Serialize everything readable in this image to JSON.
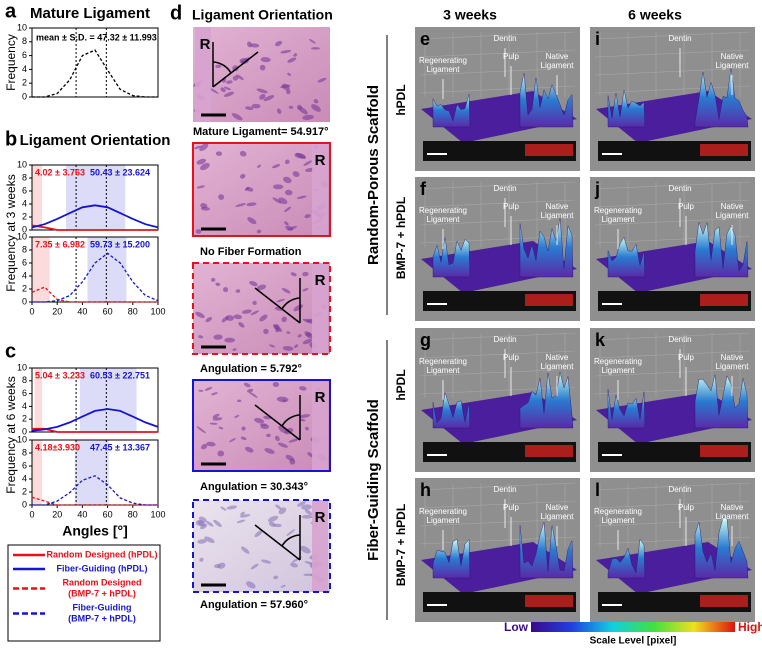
{
  "chart_data": [
    {
      "type": "line",
      "panel_letter": "a",
      "title": "Mature Ligament",
      "ylabel": "Frequency",
      "annotation": "mean ± S.D. = 47.32 ± 11.993",
      "x": [
        0,
        10,
        20,
        30,
        40,
        50,
        60,
        70,
        80,
        90,
        100
      ],
      "xlim": [
        0,
        100
      ],
      "ylim": [
        0,
        10
      ],
      "yticks": [
        0,
        2,
        4,
        6,
        8,
        10
      ],
      "vlines": [
        35,
        59
      ],
      "series": [
        {
          "color": "#000000",
          "dash": true,
          "values": [
            0,
            0,
            0.5,
            2.5,
            6.0,
            6.8,
            3.9,
            1.1,
            0.2,
            0,
            0
          ]
        }
      ]
    },
    {
      "type": "line",
      "panel_letter": "b",
      "title": "Ligament Orientation",
      "ylabel": "Frequency at 3 weeks",
      "x": [
        0,
        10,
        20,
        30,
        40,
        50,
        60,
        70,
        80,
        90,
        100
      ],
      "xlim": [
        0,
        100
      ],
      "ylim": [
        0,
        10
      ],
      "yticks": [
        0,
        2,
        4,
        6,
        8,
        10
      ],
      "vlines": [
        35,
        59
      ],
      "series": [
        {
          "color": "#e8101a",
          "dash": false,
          "annotation": "4.02 ± 3.763",
          "band": [
            0,
            8
          ],
          "values": [
            0.7,
            0.4,
            0,
            0,
            0,
            0,
            0,
            0,
            0,
            0,
            0
          ]
        },
        {
          "color": "#1515d0",
          "dash": false,
          "annotation": "50.43 ± 23.624",
          "band": [
            27,
            74
          ],
          "values": [
            0.4,
            0.9,
            1.7,
            2.6,
            3.5,
            3.8,
            3.5,
            2.6,
            1.7,
            0.9,
            0.4
          ]
        }
      ]
    },
    {
      "type": "line",
      "x": [
        0,
        10,
        20,
        30,
        40,
        50,
        60,
        70,
        80,
        90,
        100
      ],
      "xlim": [
        0,
        100
      ],
      "ylim": [
        0,
        10
      ],
      "yticks": [
        0,
        2,
        4,
        6,
        8,
        10
      ],
      "xticks": [
        0,
        20,
        40,
        60,
        80,
        100
      ],
      "vlines": [
        35,
        59
      ],
      "series": [
        {
          "color": "#e8101a",
          "dash": true,
          "annotation": "7.35 ± 6.982",
          "band": [
            0,
            14
          ],
          "values": [
            1.5,
            2.3,
            0.4,
            0,
            0,
            0,
            0,
            0,
            0,
            0,
            0
          ]
        },
        {
          "color": "#1515d0",
          "dash": true,
          "annotation": "59.73 ± 15.200",
          "band": [
            44,
            75
          ],
          "values": [
            0,
            0,
            0.2,
            1.0,
            3.1,
            6.0,
            7.5,
            6.0,
            3.1,
            1.0,
            0.2
          ]
        }
      ]
    },
    {
      "type": "line",
      "panel_letter": "c",
      "ylabel": "Frequency at 6 weeks",
      "x": [
        0,
        10,
        20,
        30,
        40,
        50,
        60,
        70,
        80,
        90,
        100
      ],
      "xlim": [
        0,
        100
      ],
      "ylim": [
        0,
        10
      ],
      "yticks": [
        0,
        2,
        4,
        6,
        8,
        10
      ],
      "vlines": [
        35,
        59
      ],
      "series": [
        {
          "color": "#e8101a",
          "dash": false,
          "annotation": "5.04 ± 3.233",
          "band": [
            2,
            8
          ],
          "values": [
            0.5,
            0.5,
            0,
            0,
            0,
            0,
            0,
            0,
            0,
            0,
            0
          ]
        },
        {
          "color": "#1515d0",
          "dash": false,
          "annotation": "60.53 ± 22.751",
          "band": [
            38,
            83
          ],
          "values": [
            0.2,
            0.4,
            0.8,
            1.5,
            2.4,
            3.3,
            3.6,
            3.3,
            2.4,
            1.5,
            0.8
          ]
        }
      ]
    },
    {
      "type": "line",
      "xlabel": "Angles [°]",
      "x": [
        0,
        10,
        20,
        30,
        40,
        50,
        60,
        70,
        80,
        90,
        100
      ],
      "xlim": [
        0,
        100
      ],
      "ylim": [
        0,
        10
      ],
      "yticks": [
        0,
        2,
        4,
        6,
        8,
        10
      ],
      "xticks": [
        0,
        20,
        40,
        60,
        80,
        100
      ],
      "vlines": [
        35,
        59
      ],
      "series": [
        {
          "color": "#e8101a",
          "dash": true,
          "annotation": "4.18±3.930",
          "band": [
            0,
            8
          ],
          "values": [
            1.2,
            0.6,
            0,
            0,
            0,
            0,
            0,
            0,
            0,
            0,
            0
          ]
        },
        {
          "color": "#1515d0",
          "dash": true,
          "annotation": "47.45 ± 13.367",
          "band": [
            34,
            61
          ],
          "values": [
            0,
            0,
            0.6,
            1.9,
            3.8,
            4.5,
            3.1,
            1.1,
            0.3,
            0,
            0
          ]
        }
      ]
    }
  ],
  "legend": [
    {
      "lines": [
        "Random Designed (hPDL)"
      ],
      "color": "#e8101a",
      "dash": false
    },
    {
      "lines": [
        "Fiber-Guiding (hPDL)"
      ],
      "color": "#1515d0",
      "dash": false
    },
    {
      "lines": [
        "Random Designed",
        "(BMP-7 + hPDL)"
      ],
      "color": "#e8101a",
      "dash": true
    },
    {
      "lines": [
        "Fiber-Guiding",
        "(BMP-7 + hPDL)"
      ],
      "color": "#1515d0",
      "dash": true
    }
  ],
  "micrograph_panel": {
    "letter": "d",
    "title": "Ligament Orientation",
    "images": [
      {
        "marker": "R",
        "caption": "Mature Ligament= 54.917°"
      },
      {
        "marker": "R",
        "caption": "No Fiber Formation",
        "border": "#e8101a",
        "border_dash": false
      },
      {
        "marker": "R",
        "caption": "Angulation = 5.792°",
        "border": "#e8101a",
        "border_dash": true
      },
      {
        "marker": "R",
        "caption": "Angulation = 30.343°",
        "border": "#1515d0",
        "border_dash": false
      },
      {
        "marker": "R",
        "caption": "Angulation = 57.960°",
        "border": "#1515d0",
        "border_dash": true
      }
    ]
  },
  "column_headers": [
    "3 weeks",
    "6 weeks"
  ],
  "row_groups": [
    {
      "label": "Random-Porous Scaffold",
      "rows": [
        "hPDL",
        "BMP-7 + hPDL"
      ]
    },
    {
      "label": "Fiber-Guiding Scaffold",
      "rows": [
        "hPDL",
        "BMP-7 + hPDL"
      ]
    }
  ],
  "surface_panels": [
    {
      "letter": "e",
      "labels": [
        {
          "lines": [
            "Regenerating",
            "Ligament"
          ]
        },
        {
          "lines": [
            "Dentin"
          ]
        },
        {
          "lines": [
            "Pulp"
          ]
        },
        {
          "lines": [
            "Native",
            "Ligament"
          ]
        }
      ]
    },
    {
      "letter": "i",
      "labels": [
        {
          "lines": [
            "Dentin"
          ]
        },
        {
          "lines": [
            "Native",
            "Ligament"
          ]
        }
      ]
    },
    {
      "letter": "f",
      "labels": [
        {
          "lines": [
            "Regenerating",
            "Ligament"
          ]
        },
        {
          "lines": [
            "Dentin"
          ]
        },
        {
          "lines": [
            "Pulp"
          ]
        },
        {
          "lines": [
            "Native",
            "Ligament"
          ]
        }
      ]
    },
    {
      "letter": "j",
      "labels": [
        {
          "lines": [
            "Regenerating",
            "Ligament"
          ]
        },
        {
          "lines": [
            "Dentin"
          ]
        },
        {
          "lines": [
            "Pulp"
          ]
        },
        {
          "lines": [
            "Native",
            "Ligament"
          ]
        }
      ]
    },
    {
      "letter": "g",
      "labels": [
        {
          "lines": [
            "Regenerating",
            "Ligament"
          ]
        },
        {
          "lines": [
            "Dentin"
          ]
        },
        {
          "lines": [
            "Pulp"
          ]
        },
        {
          "lines": [
            "Native",
            "Ligament"
          ]
        }
      ]
    },
    {
      "letter": "k",
      "labels": [
        {
          "lines": [
            "Regenerating",
            "Ligament"
          ]
        },
        {
          "lines": [
            "Dentin"
          ]
        },
        {
          "lines": [
            "Pulp"
          ]
        },
        {
          "lines": [
            "Native",
            "Ligament"
          ]
        }
      ]
    },
    {
      "letter": "h",
      "labels": [
        {
          "lines": [
            "Regenerating",
            "Ligament"
          ]
        },
        {
          "lines": [
            "Dentin"
          ]
        },
        {
          "lines": [
            "Pulp"
          ]
        },
        {
          "lines": [
            "Native",
            "Ligament"
          ]
        }
      ]
    },
    {
      "letter": "l",
      "labels": [
        {
          "lines": [
            "Regenerating",
            "Ligament"
          ]
        },
        {
          "lines": [
            "Dentin"
          ]
        },
        {
          "lines": [
            "Pulp"
          ]
        },
        {
          "lines": [
            "Native",
            "Ligament"
          ]
        }
      ]
    }
  ],
  "colorbar": {
    "low": "Low",
    "high": "High",
    "label": "Scale Level [pixel]"
  }
}
